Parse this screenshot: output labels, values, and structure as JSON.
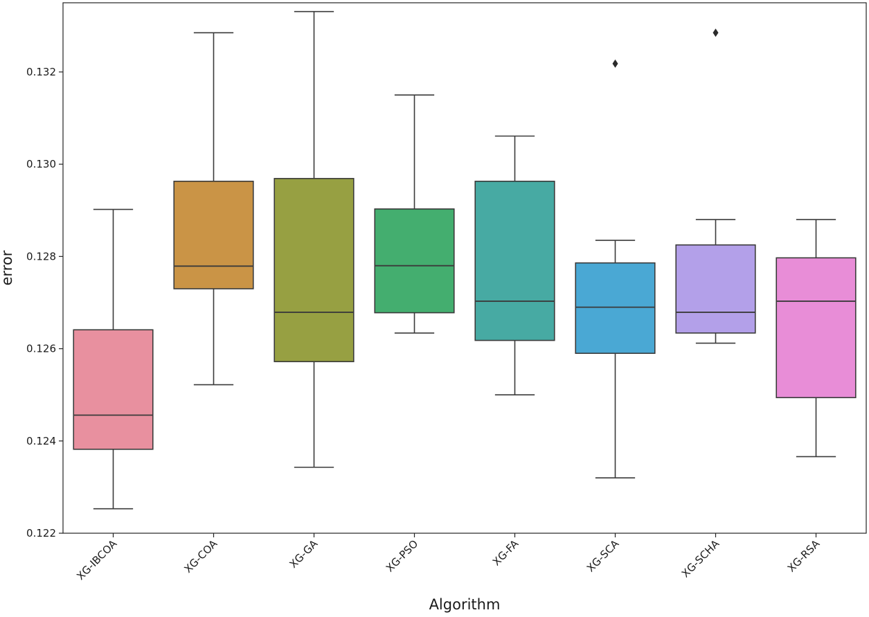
{
  "chart_data": {
    "type": "box",
    "title": "",
    "xlabel": "Algorithm",
    "ylabel": "error",
    "ylim": [
      0.122,
      0.1335
    ],
    "yticks": [
      0.122,
      0.124,
      0.126,
      0.128,
      0.13,
      0.132
    ],
    "ytick_labels": [
      "0.122",
      "0.124",
      "0.126",
      "0.128",
      "0.130",
      "0.132"
    ],
    "grid": false,
    "categories": [
      "XG-IBCOA",
      "XG-COA",
      "XG-GA",
      "XG-PSO",
      "XG-FA",
      "XG-SCA",
      "XG-SCHA",
      "XG-RSA"
    ],
    "boxes": [
      {
        "name": "XG-IBCOA",
        "whisker_low": 0.12253,
        "q1": 0.12382,
        "median": 0.12456,
        "q3": 0.12641,
        "whisker_high": 0.12902,
        "outliers": [],
        "color": "#e8909f"
      },
      {
        "name": "XG-COA",
        "whisker_low": 0.12522,
        "q1": 0.1273,
        "median": 0.12779,
        "q3": 0.12963,
        "whisker_high": 0.13285,
        "outliers": [],
        "color": "#ca9446"
      },
      {
        "name": "XG-GA",
        "whisker_low": 0.12343,
        "q1": 0.12572,
        "median": 0.12679,
        "q3": 0.12969,
        "whisker_high": 0.13331,
        "outliers": [],
        "color": "#97a042"
      },
      {
        "name": "XG-PSO",
        "whisker_low": 0.12634,
        "q1": 0.12678,
        "median": 0.1278,
        "q3": 0.12903,
        "whisker_high": 0.1315,
        "outliers": [],
        "color": "#44ae6f"
      },
      {
        "name": "XG-FA",
        "whisker_low": 0.125,
        "q1": 0.12618,
        "median": 0.12703,
        "q3": 0.12963,
        "whisker_high": 0.13061,
        "outliers": [],
        "color": "#47aaa3"
      },
      {
        "name": "XG-SCA",
        "whisker_low": 0.1232,
        "q1": 0.1259,
        "median": 0.1269,
        "q3": 0.12786,
        "whisker_high": 0.12835,
        "outliers": [
          0.13218
        ],
        "color": "#4aa8d4"
      },
      {
        "name": "XG-SCHA",
        "whisker_low": 0.12612,
        "q1": 0.12634,
        "median": 0.12679,
        "q3": 0.12825,
        "whisker_high": 0.1288,
        "outliers": [
          0.13285
        ],
        "color": "#b3a0e9"
      },
      {
        "name": "XG-RSA",
        "whisker_low": 0.12366,
        "q1": 0.12494,
        "median": 0.12703,
        "q3": 0.12797,
        "whisker_high": 0.1288,
        "outliers": [],
        "color": "#e88dd7"
      }
    ]
  }
}
